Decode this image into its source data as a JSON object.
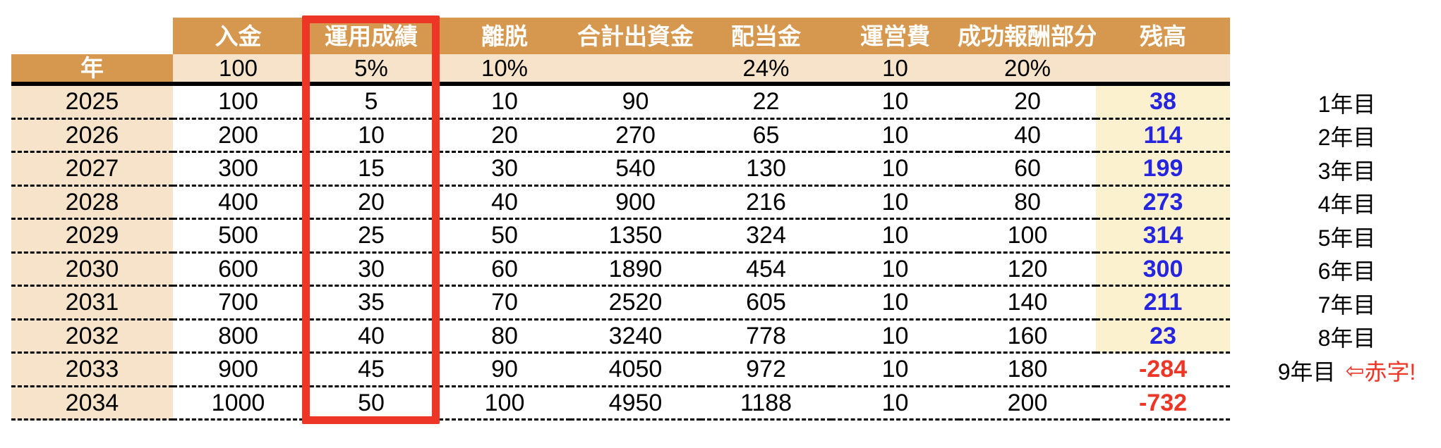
{
  "colors": {
    "header_bg": "#D6984F",
    "subheader_bg": "#F6E3CA",
    "balance_bg": "#FBF1CF",
    "balance_positive_text": "#2525E0",
    "balance_negative_text": "#ED3626",
    "highlight_box_border": "#ED3626"
  },
  "header": {
    "year_label": "年",
    "columns": [
      "入金",
      "運用成績",
      "離脱",
      "合計出資金",
      "配当金",
      "運営費",
      "成功報酬部分",
      "残高"
    ],
    "params": [
      "100",
      "5%",
      "10%",
      "",
      "24%",
      "10",
      "20%",
      ""
    ]
  },
  "rows": [
    {
      "year": "2025",
      "values": [
        "100",
        "5",
        "10",
        "90",
        "22",
        "10",
        "20"
      ],
      "balance": "38",
      "label": "1年目"
    },
    {
      "year": "2026",
      "values": [
        "200",
        "10",
        "20",
        "270",
        "65",
        "10",
        "40"
      ],
      "balance": "114",
      "label": "2年目"
    },
    {
      "year": "2027",
      "values": [
        "300",
        "15",
        "30",
        "540",
        "130",
        "10",
        "60"
      ],
      "balance": "199",
      "label": "3年目"
    },
    {
      "year": "2028",
      "values": [
        "400",
        "20",
        "40",
        "900",
        "216",
        "10",
        "80"
      ],
      "balance": "273",
      "label": "4年目"
    },
    {
      "year": "2029",
      "values": [
        "500",
        "25",
        "50",
        "1350",
        "324",
        "10",
        "100"
      ],
      "balance": "314",
      "label": "5年目"
    },
    {
      "year": "2030",
      "values": [
        "600",
        "30",
        "60",
        "1890",
        "454",
        "10",
        "120"
      ],
      "balance": "300",
      "label": "6年目"
    },
    {
      "year": "2031",
      "values": [
        "700",
        "35",
        "70",
        "2520",
        "605",
        "10",
        "140"
      ],
      "balance": "211",
      "label": "7年目"
    },
    {
      "year": "2032",
      "values": [
        "800",
        "40",
        "80",
        "3240",
        "778",
        "10",
        "160"
      ],
      "balance": "23",
      "label": "8年目"
    },
    {
      "year": "2033",
      "values": [
        "900",
        "45",
        "90",
        "4050",
        "972",
        "10",
        "180"
      ],
      "balance": "-284",
      "label": "9年目"
    },
    {
      "year": "2034",
      "values": [
        "1000",
        "50",
        "100",
        "4950",
        "1188",
        "10",
        "200"
      ],
      "balance": "-732",
      "label": ""
    }
  ],
  "note": {
    "arrow": "⇦",
    "text": "赤字!"
  }
}
